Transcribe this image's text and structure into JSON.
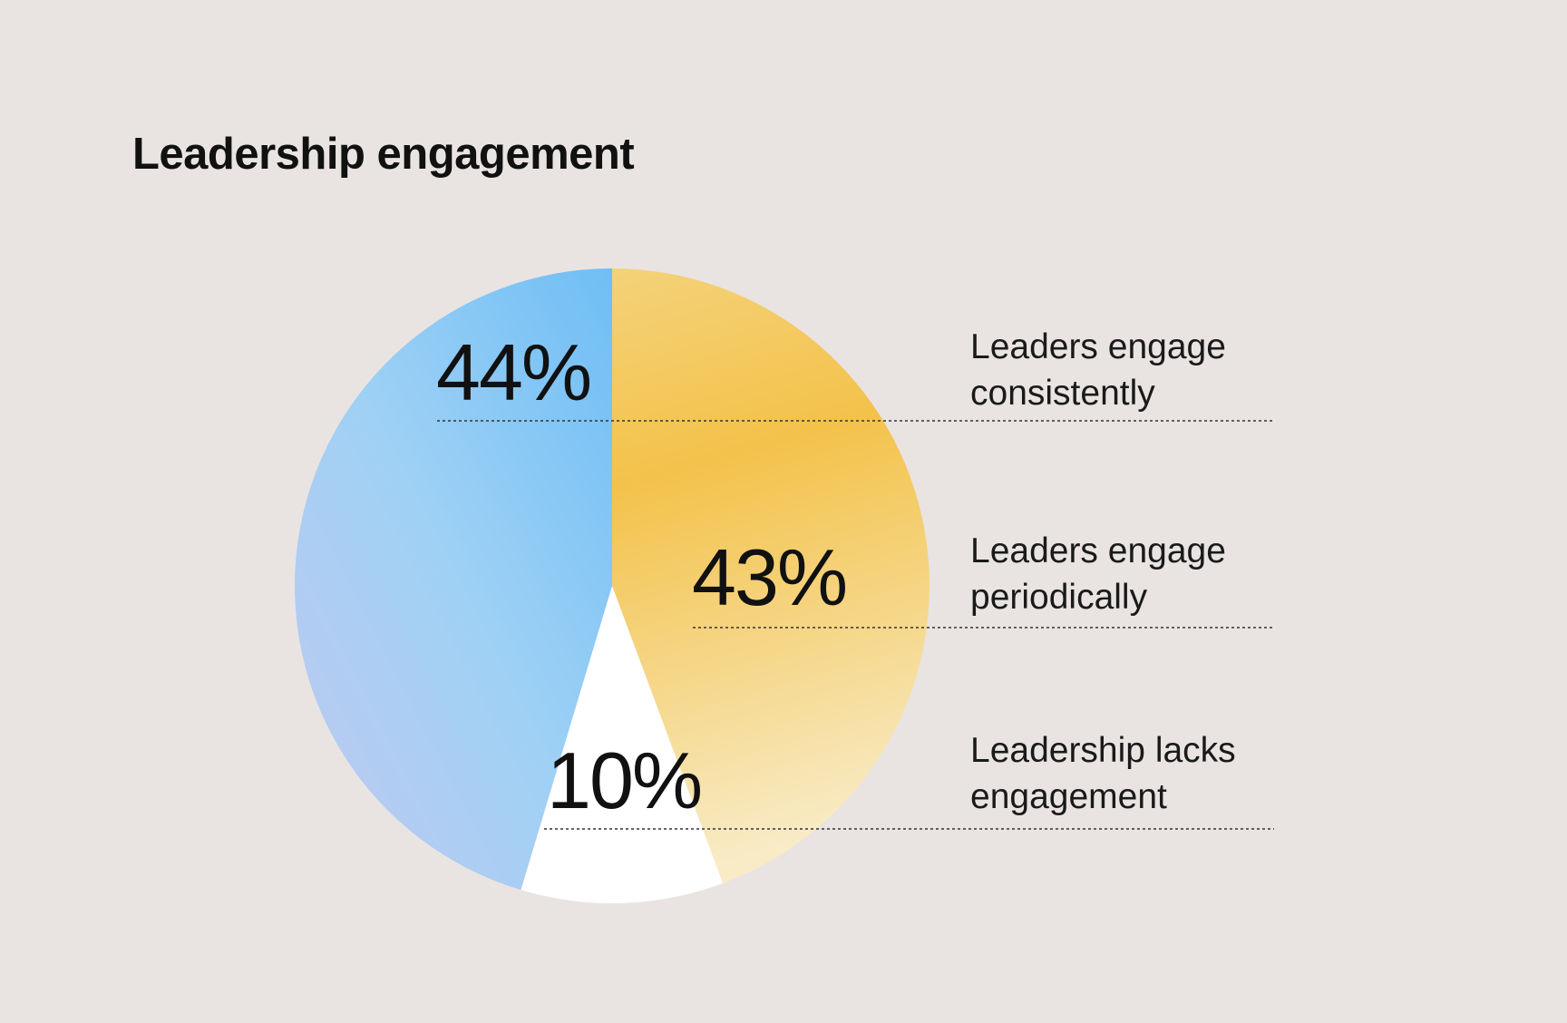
{
  "chart_data": {
    "type": "pie",
    "title": "Leadership engagement",
    "slices": [
      {
        "label": "Leaders engage periodically",
        "label_lines": [
          "Leaders engage",
          "periodically"
        ],
        "value": 43,
        "value_label": "43%",
        "color": "#f3c24a"
      },
      {
        "label": "Leadership lacks engagement",
        "label_lines": [
          "Leadership lacks",
          "engagement"
        ],
        "value": 10,
        "value_label": "10%",
        "color": "#ffffff"
      },
      {
        "label": "Leaders engage consistently",
        "label_lines": [
          "Leaders engage",
          "consistently"
        ],
        "value": 44,
        "value_label": "44%",
        "color": "#7fc4f5"
      }
    ],
    "legend_placement": "right",
    "grid": false
  }
}
